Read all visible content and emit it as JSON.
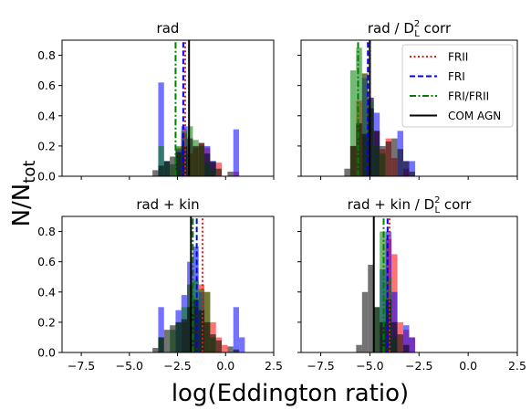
{
  "figure": {
    "ylabel": "N/N_tot",
    "xlabel": "log(Eddington ratio)"
  },
  "legend": [
    {
      "label": "FRII",
      "color": "#e41a1c",
      "style": "dotted"
    },
    {
      "label": "FRI",
      "color": "#0000ff",
      "style": "dashed"
    },
    {
      "label": "FRI/FRII",
      "color": "#008000",
      "style": "dashdot"
    },
    {
      "label": "COM AGN",
      "color": "#000000",
      "style": "solid"
    }
  ],
  "colors": {
    "FRII": "#ff0000",
    "FRI": "#0000ff",
    "FRI/FRII": "#008000",
    "COM AGN": "#000000"
  },
  "chart_data": [
    {
      "type": "bar",
      "title": "rad",
      "title_parts": {
        "main": "rad",
        "suffix": ""
      },
      "xlim": [
        -8.5,
        2.5
      ],
      "ylim": [
        0,
        0.9
      ],
      "xticks": [
        -7.5,
        -5.0,
        -2.5,
        0.0,
        2.5
      ],
      "xticklabels": [
        "−7.5",
        "−5.0",
        "−2.5",
        "0.0",
        "2.5"
      ],
      "yticks": [
        0.0,
        0.2,
        0.4,
        0.6,
        0.8
      ],
      "yticklabels": [
        "0.0",
        "0.2",
        "0.4",
        "0.6",
        "0.8"
      ],
      "show_xticklabels": false,
      "show_yticklabels": true,
      "series": [
        {
          "name": "FRII",
          "bins": [
            [
              -2.6,
              -2.3,
              0.19
            ],
            [
              -2.3,
              -2.0,
              0.28
            ],
            [
              -2.0,
              -1.7,
              0.15
            ],
            [
              -1.7,
              -1.4,
              0.19
            ],
            [
              -1.4,
              -1.1,
              0.22
            ],
            [
              -1.1,
              -0.8,
              0.19
            ],
            [
              -0.8,
              -0.5,
              0.09
            ],
            [
              -0.5,
              -0.2,
              0.09
            ],
            [
              0.4,
              0.7,
              0.03
            ]
          ]
        },
        {
          "name": "FRI",
          "bins": [
            [
              -3.5,
              -3.2,
              0.62
            ],
            [
              -3.2,
              -2.9,
              0.1
            ],
            [
              -2.6,
              -2.3,
              0.18
            ],
            [
              -2.3,
              -2.0,
              0.33
            ],
            [
              -1.1,
              -0.8,
              0.2
            ],
            [
              -0.8,
              -0.5,
              0.1
            ],
            [
              0.4,
              0.7,
              0.31
            ]
          ]
        },
        {
          "name": "FRI/FRII",
          "bins": [
            [
              -3.5,
              -3.2,
              0.2
            ],
            [
              -3.2,
              -2.9,
              0.1
            ],
            [
              -2.9,
              -2.6,
              0.08
            ],
            [
              -2.6,
              -2.3,
              0.2
            ],
            [
              -2.3,
              -2.0,
              0.3
            ],
            [
              -2.0,
              -1.7,
              0.33
            ],
            [
              -1.7,
              -1.4,
              0.24
            ],
            [
              -1.4,
              -1.1,
              0.2
            ],
            [
              -1.1,
              -0.8,
              0.09
            ],
            [
              -0.8,
              -0.5,
              0.05
            ]
          ]
        },
        {
          "name": "COM AGN",
          "bins": [
            [
              -3.8,
              -3.5,
              0.04
            ],
            [
              -3.5,
              -3.2,
              0.07
            ],
            [
              -3.2,
              -2.9,
              0.1
            ],
            [
              -2.9,
              -2.6,
              0.13
            ],
            [
              -2.6,
              -2.3,
              0.16
            ],
            [
              -2.3,
              -2.0,
              0.2
            ],
            [
              -2.0,
              -1.7,
              0.25
            ],
            [
              -1.7,
              -1.4,
              0.2
            ],
            [
              -1.4,
              -1.1,
              0.22
            ],
            [
              -1.1,
              -0.8,
              0.15
            ],
            [
              -0.8,
              -0.5,
              0.1
            ],
            [
              -0.5,
              -0.2,
              0.05
            ],
            [
              0.1,
              0.4,
              0.03
            ]
          ]
        }
      ],
      "medians": [
        {
          "name": "FRII",
          "x": -2.1
        },
        {
          "name": "FRI",
          "x": -2.2
        },
        {
          "name": "FRI/FRII",
          "x": -2.6
        },
        {
          "name": "COM AGN",
          "x": -1.9
        }
      ]
    },
    {
      "type": "bar",
      "title": "rad / D_L^2 corr",
      "title_parts": {
        "main": "rad / D",
        "sub": "L",
        "sup": "2",
        "suffix": " corr"
      },
      "xlim": [
        -8.5,
        2.5
      ],
      "ylim": [
        0,
        0.9
      ],
      "xticks": [
        -7.5,
        -5.0,
        -2.5,
        0.0,
        2.5
      ],
      "xticklabels": [
        "−7.5",
        "−5.0",
        "−2.5",
        "0.0",
        "2.5"
      ],
      "yticks": [
        0.0,
        0.2,
        0.4,
        0.6,
        0.8
      ],
      "yticklabels": [
        "0.0",
        "0.2",
        "0.4",
        "0.6",
        "0.8"
      ],
      "show_xticklabels": false,
      "show_yticklabels": false,
      "series": [
        {
          "name": "FRII",
          "bins": [
            [
              -6.0,
              -5.7,
              0.2
            ],
            [
              -5.7,
              -5.4,
              0.5
            ],
            [
              -5.4,
              -5.1,
              0.68
            ],
            [
              -5.1,
              -4.8,
              0.52
            ],
            [
              -4.8,
              -4.5,
              0.3
            ],
            [
              -4.5,
              -4.2,
              0.18
            ],
            [
              -4.2,
              -3.9,
              0.25
            ],
            [
              -3.9,
              -3.6,
              0.12
            ],
            [
              -3.3,
              -3.0,
              0.05
            ]
          ]
        },
        {
          "name": "FRI",
          "bins": [
            [
              -5.4,
              -5.1,
              0.65
            ],
            [
              -5.1,
              -4.8,
              0.52
            ],
            [
              -4.8,
              -4.5,
              0.42
            ],
            [
              -3.6,
              -3.3,
              0.3
            ],
            [
              -3.3,
              -3.0,
              0.1
            ],
            [
              -3.0,
              -2.7,
              0.1
            ]
          ]
        },
        {
          "name": "FRI/FRII",
          "bins": [
            [
              -6.0,
              -5.7,
              0.7
            ],
            [
              -5.7,
              -5.4,
              0.85
            ],
            [
              -5.4,
              -5.1,
              0.68
            ],
            [
              -5.1,
              -4.8,
              0.5
            ],
            [
              -4.8,
              -4.5,
              0.2
            ],
            [
              -4.5,
              -4.2,
              0.15
            ]
          ]
        },
        {
          "name": "COM AGN",
          "bins": [
            [
              -6.3,
              -6.0,
              0.05
            ],
            [
              -6.0,
              -5.7,
              0.2
            ],
            [
              -5.7,
              -5.4,
              0.35
            ],
            [
              -5.4,
              -5.1,
              0.28
            ],
            [
              -5.1,
              -4.8,
              0.45
            ],
            [
              -4.8,
              -4.5,
              0.3
            ],
            [
              -4.5,
              -4.2,
              0.2
            ],
            [
              -4.2,
              -3.9,
              0.23
            ],
            [
              -3.9,
              -3.6,
              0.25
            ],
            [
              -3.6,
              -3.3,
              0.18
            ],
            [
              -3.3,
              -3.0,
              0.1
            ],
            [
              -3.0,
              -2.7,
              0.03
            ]
          ]
        }
      ],
      "medians": [
        {
          "name": "FRII",
          "x": -5.0
        },
        {
          "name": "FRI",
          "x": -5.1
        },
        {
          "name": "FRI/FRII",
          "x": -5.6
        },
        {
          "name": "COM AGN",
          "x": -5.0
        }
      ],
      "legend": true
    },
    {
      "type": "bar",
      "title": "rad + kin",
      "title_parts": {
        "main": "rad + kin",
        "suffix": ""
      },
      "xlim": [
        -8.5,
        2.5
      ],
      "ylim": [
        0,
        0.9
      ],
      "xticks": [
        -7.5,
        -5.0,
        -2.5,
        0.0,
        2.5
      ],
      "xticklabels": [
        "−7.5",
        "−5.0",
        "−2.5",
        "0.0",
        "2.5"
      ],
      "yticks": [
        0.0,
        0.2,
        0.4,
        0.6,
        0.8
      ],
      "yticklabels": [
        "0.0",
        "0.2",
        "0.4",
        "0.6",
        "0.8"
      ],
      "show_xticklabels": true,
      "show_yticklabels": true,
      "series": [
        {
          "name": "FRII",
          "bins": [
            [
              -2.3,
              -2.0,
              0.2
            ],
            [
              -2.0,
              -1.7,
              0.45
            ],
            [
              -1.7,
              -1.4,
              0.3
            ],
            [
              -1.4,
              -1.1,
              0.45
            ],
            [
              -1.1,
              -0.8,
              0.4
            ],
            [
              -0.8,
              -0.5,
              0.2
            ],
            [
              -0.5,
              -0.2,
              0.1
            ],
            [
              -0.2,
              0.1,
              0.05
            ]
          ]
        },
        {
          "name": "FRI",
          "bins": [
            [
              -3.5,
              -3.2,
              0.3
            ],
            [
              -2.6,
              -2.3,
              0.28
            ],
            [
              -2.3,
              -2.0,
              0.38
            ],
            [
              -2.0,
              -1.7,
              0.6
            ],
            [
              -1.7,
              -1.4,
              0.7
            ],
            [
              -1.4,
              -1.1,
              0.4
            ],
            [
              0.4,
              0.7,
              0.3
            ],
            [
              0.7,
              1.0,
              0.1
            ]
          ]
        },
        {
          "name": "FRI/FRII",
          "bins": [
            [
              -3.5,
              -3.2,
              0.1
            ],
            [
              -2.9,
              -2.6,
              0.15
            ],
            [
              -2.6,
              -2.3,
              0.2
            ],
            [
              -2.3,
              -2.0,
              0.3
            ],
            [
              -2.0,
              -1.7,
              0.45
            ],
            [
              -1.7,
              -1.4,
              0.48
            ],
            [
              -1.4,
              -1.1,
              0.42
            ],
            [
              -1.1,
              -0.8,
              0.4
            ],
            [
              -0.8,
              -0.5,
              0.1
            ]
          ]
        },
        {
          "name": "COM AGN",
          "bins": [
            [
              -3.8,
              -3.5,
              0.03
            ],
            [
              -3.5,
              -3.2,
              0.1
            ],
            [
              -3.2,
              -2.9,
              0.15
            ],
            [
              -2.9,
              -2.6,
              0.18
            ],
            [
              -2.6,
              -2.3,
              0.2
            ],
            [
              -2.3,
              -2.0,
              0.22
            ],
            [
              -2.0,
              -1.7,
              0.3
            ],
            [
              -1.7,
              -1.4,
              0.35
            ],
            [
              -1.4,
              -1.1,
              0.28
            ],
            [
              -1.1,
              -0.8,
              0.2
            ],
            [
              -0.8,
              -0.5,
              0.12
            ],
            [
              -0.5,
              -0.2,
              0.08
            ],
            [
              0.1,
              0.4,
              0.04
            ],
            [
              0.4,
              0.7,
              0.02
            ]
          ]
        }
      ],
      "medians": [
        {
          "name": "FRII",
          "x": -1.2
        },
        {
          "name": "FRI",
          "x": -1.5
        },
        {
          "name": "FRI/FRII",
          "x": -1.7
        },
        {
          "name": "COM AGN",
          "x": -1.8
        }
      ]
    },
    {
      "type": "bar",
      "title": "rad + kin / D_L^2 corr",
      "title_parts": {
        "main": "rad + kin / D",
        "sub": "L",
        "sup": "2",
        "suffix": " corr"
      },
      "xlim": [
        -8.5,
        2.5
      ],
      "ylim": [
        0,
        0.9
      ],
      "xticks": [
        -7.5,
        -5.0,
        -2.5,
        0.0,
        2.5
      ],
      "xticklabels": [
        "−7.5",
        "−5.0",
        "−2.5",
        "0.0",
        "2.5"
      ],
      "yticks": [
        0.0,
        0.2,
        0.4,
        0.6,
        0.8
      ],
      "yticklabels": [
        "0.0",
        "0.2",
        "0.4",
        "0.6",
        "0.8"
      ],
      "show_xticklabels": true,
      "show_yticklabels": false,
      "series": [
        {
          "name": "FRII",
          "bins": [
            [
              -4.5,
              -4.2,
              0.2
            ],
            [
              -4.2,
              -3.9,
              0.75
            ],
            [
              -3.9,
              -3.6,
              0.65
            ],
            [
              -3.6,
              -3.3,
              0.2
            ],
            [
              -3.3,
              -3.0,
              0.15
            ],
            [
              -3.0,
              -2.7,
              0.1
            ]
          ]
        },
        {
          "name": "FRI",
          "bins": [
            [
              -4.5,
              -4.2,
              0.55
            ],
            [
              -4.2,
              -3.9,
              0.8
            ],
            [
              -3.9,
              -3.6,
              0.4
            ],
            [
              -3.3,
              -3.0,
              0.18
            ],
            [
              -3.0,
              -2.7,
              0.1
            ]
          ]
        },
        {
          "name": "FRI/FRII",
          "bins": [
            [
              -4.8,
              -4.5,
              0.3
            ],
            [
              -4.5,
              -4.2,
              0.8
            ],
            [
              -4.2,
              -3.9,
              0.5
            ],
            [
              -3.9,
              -3.6,
              0.1
            ]
          ]
        },
        {
          "name": "COM AGN",
          "bins": [
            [
              -5.7,
              -5.4,
              0.05
            ],
            [
              -5.4,
              -5.1,
              0.4
            ],
            [
              -5.1,
              -4.8,
              0.58
            ],
            [
              -4.8,
              -4.5,
              0.3
            ],
            [
              -4.5,
              -4.2,
              0.2
            ],
            [
              -4.2,
              -3.9,
              0.35
            ],
            [
              -3.9,
              -3.6,
              0.2
            ],
            [
              -3.6,
              -3.3,
              0.12
            ],
            [
              -3.3,
              -3.0,
              0.05
            ]
          ]
        }
      ],
      "medians": [
        {
          "name": "FRII",
          "x": -4.0
        },
        {
          "name": "FRI",
          "x": -4.1
        },
        {
          "name": "FRI/FRII",
          "x": -4.3
        },
        {
          "name": "COM AGN",
          "x": -4.8
        }
      ]
    }
  ]
}
